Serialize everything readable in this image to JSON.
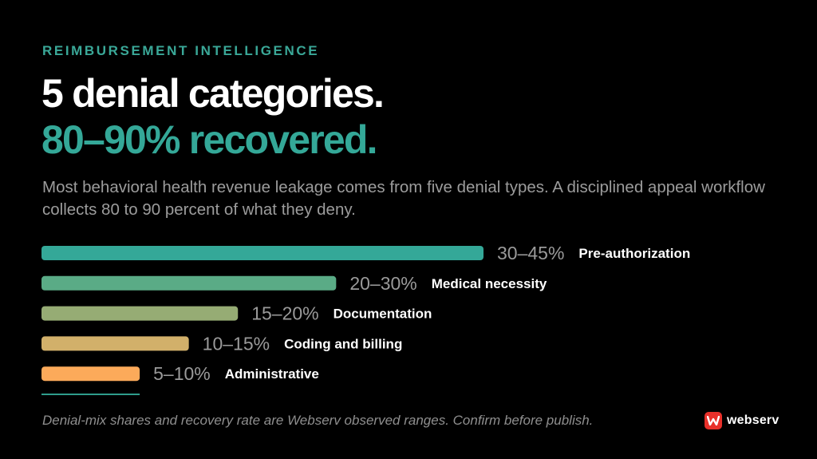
{
  "eyebrow": "REIMBURSEMENT INTELLIGENCE",
  "headline": {
    "line1": "5 denial categories.",
    "line2": "80–90% recovered."
  },
  "subtitle": "Most behavioral health revenue leakage comes from five denial types. A disciplined appeal workflow collects 80 to 90 percent of what they deny.",
  "footnote": "Denial-mix shares and recovery rate are Webserv observed ranges. Confirm before publish.",
  "logo": {
    "text": "webserv",
    "icon": "webserv-logo-icon",
    "color": "#e8302a"
  },
  "colors": {
    "accent": "#34a898",
    "background": "#000000"
  },
  "chart_data": {
    "type": "bar",
    "orientation": "horizontal",
    "categories": [
      "Pre-authorization",
      "Medical necessity",
      "Documentation",
      "Coding and billing",
      "Administrative"
    ],
    "value_labels": [
      "30–45%",
      "20–30%",
      "15–20%",
      "10–15%",
      "5–10%"
    ],
    "ranges": [
      [
        30,
        45
      ],
      [
        20,
        30
      ],
      [
        15,
        20
      ],
      [
        10,
        15
      ],
      [
        5,
        10
      ]
    ],
    "values": [
      45,
      30,
      20,
      15,
      10
    ],
    "colors": [
      "#34a898",
      "#5aab86",
      "#96ac74",
      "#d2b06a",
      "#fcaa5a"
    ],
    "xlim": [
      0,
      45
    ],
    "axis_rule_color": "#2e9c8c",
    "title": "",
    "xlabel": "",
    "ylabel": ""
  }
}
